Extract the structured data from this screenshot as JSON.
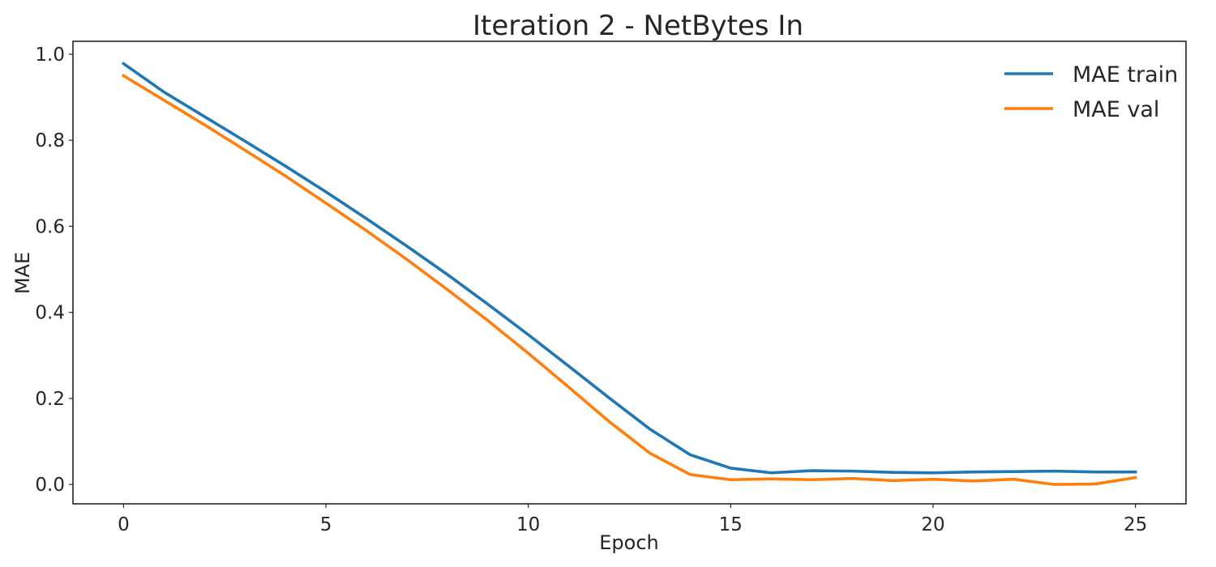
{
  "chart_data": {
    "type": "line",
    "title": "Iteration 2 - NetBytes In",
    "xlabel": "Epoch",
    "ylabel": "MAE",
    "xlim": [
      -1.25,
      26.25
    ],
    "ylim": [
      -0.045,
      1.03
    ],
    "xticks": [
      0,
      5,
      10,
      15,
      20,
      25
    ],
    "yticks": [
      0.0,
      0.2,
      0.4,
      0.6,
      0.8,
      1.0
    ],
    "xtick_labels": [
      "0",
      "5",
      "10",
      "15",
      "20",
      "25"
    ],
    "ytick_labels": [
      "0.0",
      "0.2",
      "0.4",
      "0.6",
      "0.8",
      "1.0"
    ],
    "grid": false,
    "legend_position": "top-right",
    "x": [
      0,
      1,
      2,
      3,
      4,
      5,
      6,
      7,
      8,
      9,
      10,
      11,
      12,
      13,
      14,
      15,
      16,
      17,
      18,
      19,
      20,
      21,
      22,
      23,
      24,
      25
    ],
    "series": [
      {
        "name": "MAE train",
        "color": "#1f77b4",
        "values": [
          0.978,
          0.912,
          0.855,
          0.798,
          0.74,
          0.68,
          0.618,
          0.554,
          0.488,
          0.419,
          0.348,
          0.275,
          0.201,
          0.129,
          0.069,
          0.038,
          0.027,
          0.032,
          0.031,
          0.028,
          0.027,
          0.029,
          0.03,
          0.031,
          0.029,
          0.029
        ]
      },
      {
        "name": "MAE val",
        "color": "#ff7f0e",
        "values": [
          0.95,
          0.893,
          0.836,
          0.777,
          0.717,
          0.654,
          0.59,
          0.523,
          0.453,
          0.381,
          0.305,
          0.226,
          0.146,
          0.073,
          0.023,
          0.011,
          0.013,
          0.011,
          0.014,
          0.009,
          0.012,
          0.008,
          0.012,
          0.0,
          0.001,
          0.016
        ]
      }
    ]
  }
}
